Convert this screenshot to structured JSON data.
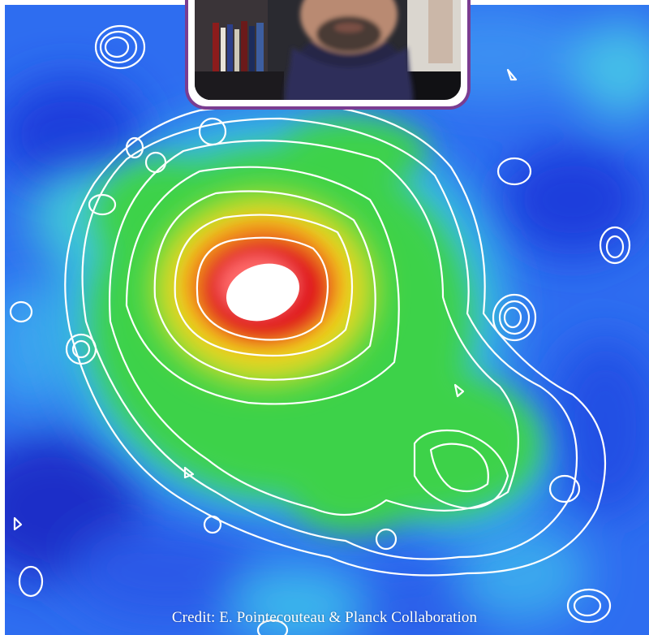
{
  "image": {
    "subject": "Planck galaxy cluster map with X-ray contour overlay",
    "colormap": [
      "#1f3ddc",
      "#2f7ff0",
      "#33c8e0",
      "#39d24a",
      "#a8e02c",
      "#f0c320",
      "#f07a1c",
      "#e0171a",
      "#ffffff"
    ],
    "contour_color": "#ffffff"
  },
  "webcam": {
    "frame_color": "#7a3d91"
  },
  "credit": {
    "text": "Credit: E. Pointecouteau & Planck Collaboration"
  }
}
